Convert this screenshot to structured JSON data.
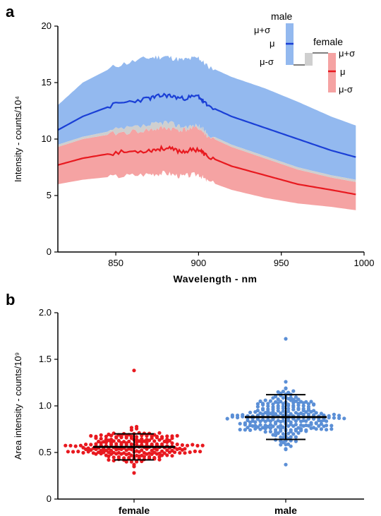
{
  "chart_data": [
    {
      "panel": "a",
      "type": "area",
      "xlabel": "Wavelength - nm",
      "ylabel": "Intensity - counts/10⁴",
      "xlim": [
        815,
        1000
      ],
      "ylim": [
        0,
        20
      ],
      "xticks": [
        850,
        900,
        950,
        1000
      ],
      "yticks": [
        0,
        5,
        10,
        15,
        20
      ],
      "grid": false,
      "legend": {
        "placement": "top-right",
        "groups": [
          {
            "title": "male",
            "labels": [
              "μ+σ",
              "μ",
              "μ-σ"
            ]
          },
          {
            "title": "female",
            "labels": [
              "μ+σ",
              "μ",
              "μ-σ"
            ]
          }
        ]
      },
      "colors": {
        "male_band": "#93b9ef",
        "male_line": "#1a3fd6",
        "overlap_band": "#cfcfcf",
        "female_band": "#f5a3a3",
        "female_line": "#e8191f"
      },
      "x": [
        815,
        830,
        850,
        870,
        880,
        890,
        900,
        905,
        920,
        940,
        960,
        980,
        995
      ],
      "series": [
        {
          "name": "male",
          "stat": "μ+σ",
          "values": [
            13.0,
            15.0,
            16.5,
            17.2,
            17.3,
            17.0,
            17.2,
            16.5,
            15.5,
            14.5,
            13.3,
            12.0,
            11.2
          ]
        },
        {
          "name": "male",
          "stat": "μ",
          "values": [
            10.8,
            12.0,
            13.1,
            13.6,
            13.9,
            13.6,
            13.8,
            13.0,
            12.0,
            11.0,
            10.0,
            9.0,
            8.4
          ]
        },
        {
          "name": "male",
          "stat": "μ-σ",
          "values": [
            9.5,
            10.2,
            10.8,
            11.2,
            11.5,
            11.1,
            11.2,
            10.5,
            9.5,
            8.5,
            7.5,
            6.8,
            6.4
          ]
        },
        {
          "name": "female",
          "stat": "μ+σ",
          "values": [
            9.3,
            10.0,
            10.5,
            10.8,
            11.0,
            10.8,
            11.0,
            10.3,
            9.3,
            8.3,
            7.3,
            6.6,
            6.2
          ]
        },
        {
          "name": "female",
          "stat": "μ",
          "values": [
            7.7,
            8.3,
            8.8,
            9.0,
            9.2,
            8.9,
            9.1,
            8.5,
            7.6,
            6.8,
            6.0,
            5.5,
            5.1
          ]
        },
        {
          "name": "female",
          "stat": "μ-σ",
          "values": [
            6.0,
            6.4,
            6.7,
            6.9,
            7.0,
            6.7,
            6.9,
            6.3,
            5.5,
            4.8,
            4.3,
            4.0,
            3.7
          ]
        }
      ]
    },
    {
      "panel": "b",
      "type": "scatter",
      "xlabel": "",
      "ylabel": "Area intensity - counts/10⁹",
      "categories": [
        "female",
        "male"
      ],
      "ylim": [
        0,
        2.0
      ],
      "yticks": [
        "0",
        "0.5",
        "1.0",
        "1.5",
        "2.0"
      ],
      "grid": false,
      "colors": {
        "female": "#e8191f",
        "male": "#5b8fd6",
        "errorbar": "#000000"
      },
      "summary": [
        {
          "name": "female",
          "mean": 0.56,
          "sd_low": 0.42,
          "sd_high": 0.7,
          "min": 0.28,
          "max": 1.38,
          "n": 220
        },
        {
          "name": "male",
          "mean": 0.88,
          "sd_low": 0.64,
          "sd_high": 1.12,
          "min": 0.37,
          "max": 1.72,
          "n": 260
        }
      ]
    }
  ]
}
